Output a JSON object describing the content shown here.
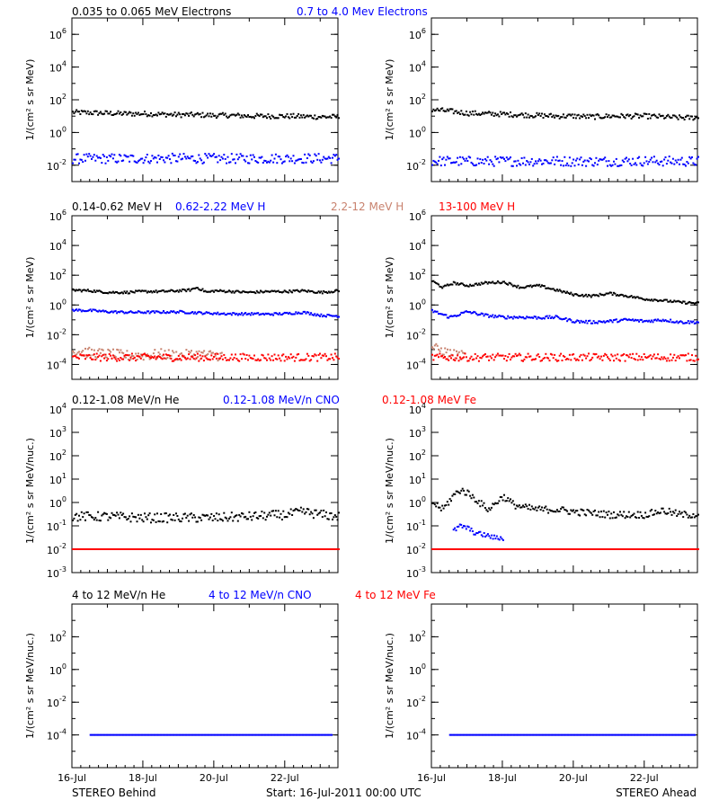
{
  "colors": {
    "black": "#000000",
    "blue": "#0000ff",
    "tan": "#c8826e",
    "red": "#ff0000"
  },
  "footer": {
    "left": "STEREO Behind",
    "center": "Start: 16-Jul-2011 00:00 UTC",
    "right": "STEREO Ahead"
  },
  "x_ticks": [
    "16-Jul",
    "18-Jul",
    "20-Jul",
    "22-Jul"
  ],
  "rows": [
    {
      "legend": [
        {
          "text": "0.035 to 0.065 MeV Electrons",
          "color": "black"
        },
        {
          "text": "0.7 to 4.0 Mev Electrons",
          "color": "blue"
        }
      ],
      "ylabel": "1/(cm² s sr MeV)"
    },
    {
      "legend": [
        {
          "text": "0.14-0.62 MeV H",
          "color": "black"
        },
        {
          "text": "0.62-2.22 MeV H",
          "color": "blue"
        },
        {
          "text": "2.2-12 MeV H",
          "color": "tan"
        },
        {
          "text": "13-100 MeV H",
          "color": "red"
        }
      ],
      "ylabel": "1/(cm² s sr MeV)"
    },
    {
      "legend": [
        {
          "text": "0.12-1.08 MeV/n He",
          "color": "black"
        },
        {
          "text": "0.12-1.08 MeV/n CNO",
          "color": "blue"
        },
        {
          "text": "0.12-1.08 MeV Fe",
          "color": "red"
        }
      ],
      "ylabel": "1/(cm² s sr MeV/nuc.)"
    },
    {
      "legend": [
        {
          "text": "4 to 12 MeV/n He",
          "color": "black"
        },
        {
          "text": "4 to 12 MeV/n CNO",
          "color": "blue"
        },
        {
          "text": "4 to 12 MeV Fe",
          "color": "red"
        }
      ],
      "ylabel": "1/(cm² s sr MeV/nuc.)"
    }
  ],
  "chart_data": [
    {
      "type": "scatter",
      "panel": "electrons-behind",
      "log_y": true,
      "ylim": [
        0.001,
        10000000
      ],
      "xlim": [
        0,
        7.5
      ],
      "x_unit": "days since 16-Jul-2011 00:00 UTC",
      "yticks": [
        {
          "v": 0.01,
          "mant": "10",
          "exp": "-2"
        },
        {
          "v": 1,
          "mant": "10",
          "exp": "0"
        },
        {
          "v": 100,
          "mant": "10",
          "exp": "2"
        },
        {
          "v": 10000,
          "mant": "10",
          "exp": "4"
        },
        {
          "v": 1000000,
          "mant": "10",
          "exp": "6"
        }
      ],
      "series": [
        {
          "color": "black",
          "x": [
            0,
            0.5,
            1,
            1.5,
            2,
            2.5,
            3,
            3.5,
            4,
            4.5,
            5,
            5.5,
            6,
            6.5,
            7,
            7.5
          ],
          "y": [
            17,
            16,
            15,
            14,
            14,
            13,
            12,
            12,
            11,
            11,
            10,
            10,
            10,
            9.5,
            9,
            9
          ],
          "scatter": 0.15
        },
        {
          "color": "blue",
          "x": [
            0,
            1.5,
            3,
            4.5,
            6,
            7.5
          ],
          "y": [
            0.025,
            0.025,
            0.026,
            0.025,
            0.026,
            0.026
          ],
          "scatter": 0.3
        }
      ]
    },
    {
      "type": "scatter",
      "panel": "electrons-ahead",
      "log_y": true,
      "ylim": [
        0.001,
        10000000
      ],
      "xlim": [
        0,
        7.5
      ],
      "x_unit": "days since 16-Jul-2011 00:00 UTC",
      "yticks": [
        {
          "v": 0.01,
          "mant": "10",
          "exp": "-2"
        },
        {
          "v": 1,
          "mant": "10",
          "exp": "0"
        },
        {
          "v": 100,
          "mant": "10",
          "exp": "2"
        },
        {
          "v": 10000,
          "mant": "10",
          "exp": "4"
        },
        {
          "v": 1000000,
          "mant": "10",
          "exp": "6"
        }
      ],
      "series": [
        {
          "color": "black",
          "x": [
            0,
            0.5,
            1,
            1.5,
            2,
            2.5,
            3,
            3.5,
            4,
            4.5,
            5,
            5.5,
            6,
            6.5,
            7,
            7.5
          ],
          "y": [
            25,
            20,
            15,
            14,
            13,
            12,
            11,
            10,
            10,
            9,
            10,
            10,
            10,
            9,
            8,
            8
          ],
          "scatter": 0.15
        },
        {
          "color": "blue",
          "x": [
            0,
            1.5,
            3,
            4.5,
            6,
            7.5
          ],
          "y": [
            0.018,
            0.017,
            0.018,
            0.017,
            0.018,
            0.017
          ],
          "scatter": 0.3
        }
      ]
    },
    {
      "type": "scatter",
      "panel": "protons-behind",
      "log_y": true,
      "ylim": [
        1e-05,
        1000000
      ],
      "xlim": [
        0,
        7.5
      ],
      "x_unit": "days since 16-Jul-2011 00:00 UTC",
      "yticks": [
        {
          "v": 0.0001,
          "mant": "10",
          "exp": "-4"
        },
        {
          "v": 0.01,
          "mant": "10",
          "exp": "-2"
        },
        {
          "v": 1,
          "mant": "10",
          "exp": "0"
        },
        {
          "v": 100,
          "mant": "10",
          "exp": "2"
        },
        {
          "v": 10000,
          "mant": "10",
          "exp": "4"
        },
        {
          "v": 1000000,
          "mant": "10",
          "exp": "6"
        }
      ],
      "series": [
        {
          "color": "black",
          "x": [
            0,
            0.5,
            1,
            1.5,
            2,
            2.5,
            3,
            3.3,
            3.5,
            3.8,
            4,
            4.5,
            5,
            5.5,
            6,
            6.5,
            7,
            7.5
          ],
          "y": [
            10,
            9,
            7,
            7,
            8,
            8,
            9,
            10,
            15,
            7,
            9,
            8,
            7,
            8,
            8,
            9,
            7,
            9
          ],
          "scatter": 0.08
        },
        {
          "color": "blue",
          "x": [
            0,
            0.5,
            1,
            1.5,
            2,
            2.5,
            3,
            3.5,
            4,
            4.5,
            5,
            5.5,
            6,
            6.5,
            7,
            7.5
          ],
          "y": [
            0.45,
            0.42,
            0.35,
            0.32,
            0.32,
            0.33,
            0.34,
            0.3,
            0.27,
            0.25,
            0.25,
            0.24,
            0.26,
            0.32,
            0.2,
            0.18
          ],
          "scatter": 0.08
        },
        {
          "color": "tan",
          "x": [
            0,
            0.5,
            1,
            1.5,
            2,
            2.5,
            3,
            3.5,
            4,
            4.2
          ],
          "y": [
            0.0008,
            0.0006,
            0.0005,
            0.0004,
            0.0004,
            0.0005,
            0.0004,
            0.0005,
            0.0004,
            0.0004
          ],
          "scatter": 0.35
        },
        {
          "color": "red",
          "x": [
            0,
            1.5,
            3,
            4.5,
            6,
            7.5
          ],
          "y": [
            0.0003,
            0.0003,
            0.0003,
            0.0003,
            0.0003,
            0.0003
          ],
          "scatter": 0.25
        }
      ]
    },
    {
      "type": "scatter",
      "panel": "protons-ahead",
      "log_y": true,
      "ylim": [
        1e-05,
        1000000
      ],
      "xlim": [
        0,
        7.5
      ],
      "x_unit": "days since 16-Jul-2011 00:00 UTC",
      "yticks": [
        {
          "v": 0.0001,
          "mant": "10",
          "exp": "-4"
        },
        {
          "v": 0.01,
          "mant": "10",
          "exp": "-2"
        },
        {
          "v": 1,
          "mant": "10",
          "exp": "0"
        },
        {
          "v": 100,
          "mant": "10",
          "exp": "2"
        },
        {
          "v": 10000,
          "mant": "10",
          "exp": "4"
        },
        {
          "v": 1000000,
          "mant": "10",
          "exp": "6"
        }
      ],
      "series": [
        {
          "color": "black",
          "x": [
            0,
            0.3,
            0.6,
            1,
            1.5,
            2,
            2.5,
            3,
            3.5,
            4,
            4.5,
            5,
            5.5,
            6,
            6.5,
            7,
            7.5
          ],
          "y": [
            40,
            15,
            30,
            20,
            30,
            35,
            15,
            20,
            10,
            5,
            4,
            6,
            4,
            2.5,
            2,
            1.5,
            1.3
          ],
          "scatter": 0.08
        },
        {
          "color": "blue",
          "x": [
            0,
            0.5,
            1,
            1.5,
            2,
            2.5,
            3,
            3.5,
            4,
            4.5,
            5,
            5.5,
            6,
            6.5,
            7,
            7.5
          ],
          "y": [
            0.4,
            0.15,
            0.35,
            0.2,
            0.15,
            0.15,
            0.14,
            0.15,
            0.08,
            0.07,
            0.08,
            0.1,
            0.08,
            0.1,
            0.07,
            0.07
          ],
          "scatter": 0.1
        },
        {
          "color": "tan",
          "x": [
            0,
            0.3,
            0.6,
            0.9
          ],
          "y": [
            0.0015,
            0.0008,
            0.0005,
            0.0004
          ],
          "scatter": 0.3
        },
        {
          "color": "red",
          "x": [
            0,
            1.5,
            3,
            4.5,
            6,
            7.5
          ],
          "y": [
            0.0003,
            0.0003,
            0.0003,
            0.0003,
            0.0003,
            0.0003
          ],
          "scatter": 0.25
        }
      ]
    },
    {
      "type": "scatter",
      "panel": "heavy-low-behind",
      "log_y": true,
      "ylim": [
        0.001,
        10000
      ],
      "xlim": [
        0,
        7.5
      ],
      "x_unit": "days since 16-Jul-2011 00:00 UTC",
      "yticks": [
        {
          "v": 0.001,
          "mant": "10",
          "exp": "-3"
        },
        {
          "v": 0.01,
          "mant": "10",
          "exp": "-2"
        },
        {
          "v": 0.1,
          "mant": "10",
          "exp": "-1"
        },
        {
          "v": 1,
          "mant": "10",
          "exp": "0"
        },
        {
          "v": 10,
          "mant": "10",
          "exp": "1"
        },
        {
          "v": 100,
          "mant": "10",
          "exp": "2"
        },
        {
          "v": 1000,
          "mant": "10",
          "exp": "3"
        },
        {
          "v": 10000,
          "mant": "10",
          "exp": "4"
        }
      ],
      "series": [
        {
          "color": "black",
          "x": [
            0,
            1,
            2,
            3,
            4,
            5,
            6,
            6.5,
            7,
            7.5
          ],
          "y": [
            0.25,
            0.25,
            0.22,
            0.22,
            0.22,
            0.25,
            0.3,
            0.4,
            0.3,
            0.25
          ],
          "scatter": 0.2
        },
        {
          "color": "blue",
          "x": [
            0,
            7.5
          ],
          "y": [
            0.01,
            0.01
          ],
          "scatter": 0
        },
        {
          "color": "red",
          "x": [
            0,
            7.5
          ],
          "y": [
            0.01,
            0.01
          ],
          "scatter": 0
        }
      ]
    },
    {
      "type": "scatter",
      "panel": "heavy-low-ahead",
      "log_y": true,
      "ylim": [
        0.001,
        10000
      ],
      "xlim": [
        0,
        7.5
      ],
      "x_unit": "days since 16-Jul-2011 00:00 UTC",
      "yticks": [
        {
          "v": 0.001,
          "mant": "10",
          "exp": "-3"
        },
        {
          "v": 0.01,
          "mant": "10",
          "exp": "-2"
        },
        {
          "v": 0.1,
          "mant": "10",
          "exp": "-1"
        },
        {
          "v": 1,
          "mant": "10",
          "exp": "0"
        },
        {
          "v": 10,
          "mant": "10",
          "exp": "1"
        },
        {
          "v": 100,
          "mant": "10",
          "exp": "2"
        },
        {
          "v": 1000,
          "mant": "10",
          "exp": "3"
        },
        {
          "v": 10000,
          "mant": "10",
          "exp": "4"
        }
      ],
      "series": [
        {
          "color": "black",
          "x": [
            0,
            0.3,
            0.6,
            0.8,
            1.0,
            1.2,
            1.4,
            1.6,
            1.8,
            2.0,
            2.3,
            2.6,
            3.0,
            3.5,
            4,
            4.5,
            5,
            5.5,
            6,
            6.5,
            7,
            7.5
          ],
          "y": [
            1.0,
            0.5,
            2.0,
            3.5,
            2.5,
            1.5,
            0.8,
            0.5,
            1.0,
            1.8,
            0.8,
            0.6,
            0.5,
            0.5,
            0.4,
            0.35,
            0.3,
            0.3,
            0.3,
            0.45,
            0.3,
            0.3
          ],
          "scatter": 0.15
        },
        {
          "color": "blue",
          "x": [
            0.6,
            0.8,
            1.0,
            1.2,
            1.5,
            1.8,
            2.0
          ],
          "y": [
            0.06,
            0.1,
            0.08,
            0.05,
            0.04,
            0.03,
            0.03
          ],
          "scatter": 0.1
        },
        {
          "color": "red",
          "x": [
            0,
            7.5
          ],
          "y": [
            0.01,
            0.01
          ],
          "scatter": 0
        }
      ]
    },
    {
      "type": "scatter",
      "panel": "heavy-high-behind",
      "log_y": true,
      "ylim": [
        1e-06,
        10000
      ],
      "xlim": [
        0,
        7.5
      ],
      "x_unit": "days since 16-Jul-2011 00:00 UTC",
      "yticks": [
        {
          "v": 0.0001,
          "mant": "10",
          "exp": "-4"
        },
        {
          "v": 0.01,
          "mant": "10",
          "exp": "-2"
        },
        {
          "v": 1,
          "mant": "10",
          "exp": "0"
        },
        {
          "v": 100,
          "mant": "10",
          "exp": "2"
        }
      ],
      "series": [
        {
          "color": "blue",
          "x": [
            0.5,
            7.3
          ],
          "y": [
            0.0001,
            0.0001
          ],
          "scatter": 0
        }
      ]
    },
    {
      "type": "scatter",
      "panel": "heavy-high-ahead",
      "log_y": true,
      "ylim": [
        1e-06,
        10000
      ],
      "xlim": [
        0,
        7.5
      ],
      "x_unit": "days since 16-Jul-2011 00:00 UTC",
      "yticks": [
        {
          "v": 0.0001,
          "mant": "10",
          "exp": "-4"
        },
        {
          "v": 0.01,
          "mant": "10",
          "exp": "-2"
        },
        {
          "v": 1,
          "mant": "10",
          "exp": "0"
        },
        {
          "v": 100,
          "mant": "10",
          "exp": "2"
        }
      ],
      "series": [
        {
          "color": "blue",
          "x": [
            0.5,
            7.4
          ],
          "y": [
            0.0001,
            0.0001
          ],
          "scatter": 0
        }
      ]
    }
  ]
}
